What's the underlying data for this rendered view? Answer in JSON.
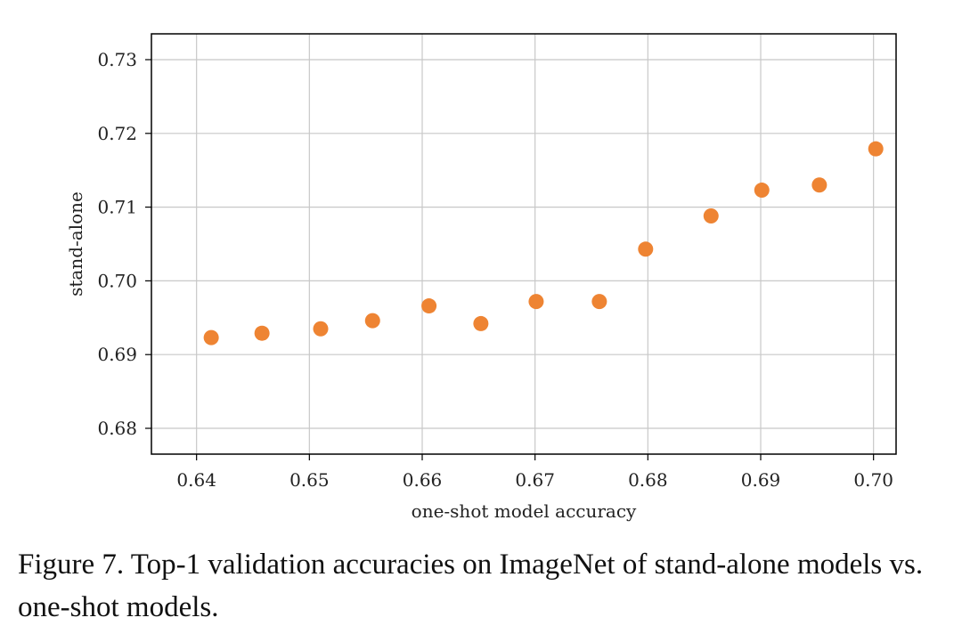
{
  "chart_data": {
    "type": "scatter",
    "title": "",
    "xlabel": "one-shot model accuracy",
    "ylabel": "stand-alone",
    "xlim": [
      0.636,
      0.702
    ],
    "ylim": [
      0.6765,
      0.7335
    ],
    "x_ticks": [
      0.64,
      0.65,
      0.66,
      0.67,
      0.68,
      0.69,
      0.7
    ],
    "x_tick_labels": [
      "0.64",
      "0.65",
      "0.66",
      "0.67",
      "0.68",
      "0.69",
      "0.70"
    ],
    "y_ticks": [
      0.68,
      0.69,
      0.7,
      0.71,
      0.72,
      0.73
    ],
    "y_tick_labels": [
      "0.68",
      "0.69",
      "0.70",
      "0.71",
      "0.72",
      "0.73"
    ],
    "grid": true,
    "marker_color": "#ee8433",
    "x": [
      0.6413,
      0.6458,
      0.651,
      0.6556,
      0.6606,
      0.6652,
      0.6701,
      0.6757,
      0.6798,
      0.6856,
      0.6901,
      0.6952,
      0.7002
    ],
    "y": [
      0.6923,
      0.6929,
      0.6935,
      0.6946,
      0.6966,
      0.6942,
      0.6972,
      0.6972,
      0.7043,
      0.7088,
      0.7123,
      0.713,
      0.7179
    ]
  },
  "caption": "Figure 7. Top-1 validation accuracies on ImageNet of stand-alone models vs. one-shot models."
}
